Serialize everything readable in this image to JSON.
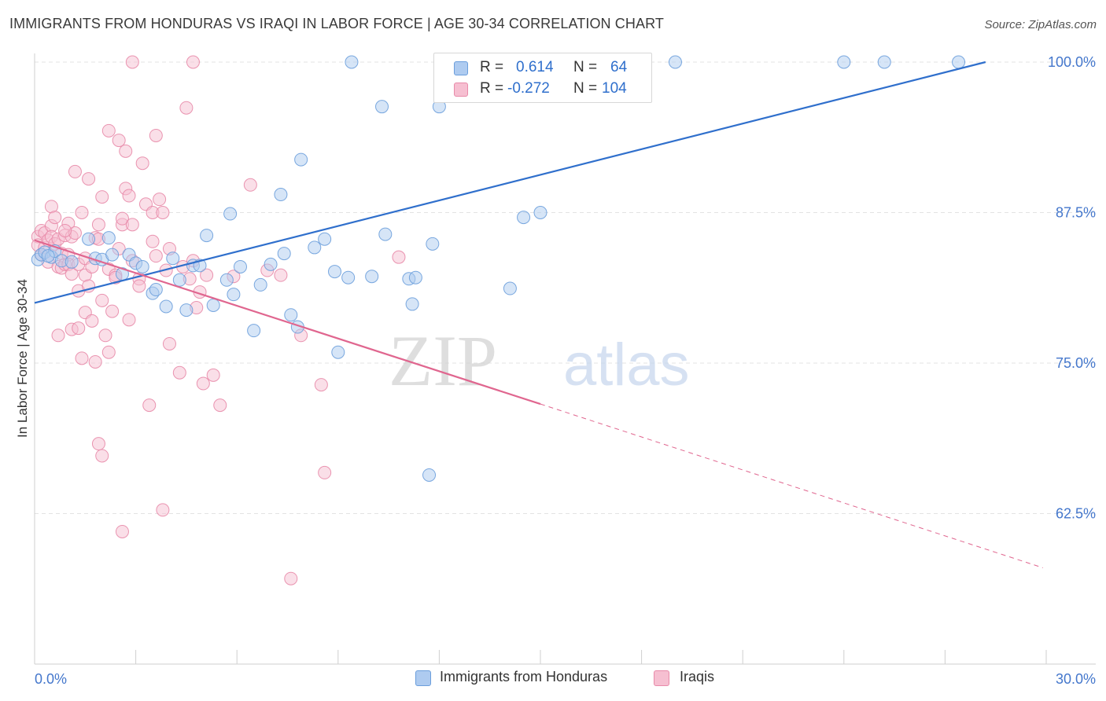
{
  "header": {
    "title": "IMMIGRANTS FROM HONDURAS VS IRAQI IN LABOR FORCE | AGE 30-34 CORRELATION CHART",
    "source": "Source: ZipAtlas.com"
  },
  "watermark": {
    "zip": "ZIP",
    "atlas": "atlas"
  },
  "legend": {
    "rows": [
      {
        "r_label": "R =",
        "r_value": "0.614",
        "n_label": "N =",
        "n_value": "64"
      },
      {
        "r_label": "R =",
        "r_value": "-0.272",
        "n_label": "N =",
        "n_value": "104"
      }
    ]
  },
  "colors": {
    "honduras_fill": "#aecbf0",
    "honduras_stroke": "#6b9edc",
    "honduras_line": "#2f6fcc",
    "iraqis_fill": "#f6bfd1",
    "iraqis_stroke": "#e88aa9",
    "iraqis_line": "#e0668f",
    "axis_label": "#4477cc",
    "grid": "#e3e3e3"
  },
  "chart_data": {
    "type": "scatter",
    "title": "IMMIGRANTS FROM HONDURAS VS IRAQI IN LABOR FORCE | AGE 30-34 CORRELATION CHART",
    "xlabel": "",
    "ylabel": "In Labor Force | Age 30-34",
    "xlim": [
      0,
      30
    ],
    "ylim": [
      50,
      100
    ],
    "x_tick_labels": [
      "0.0%",
      "30.0%"
    ],
    "y_ticks": [
      62.5,
      75.0,
      87.5,
      100.0
    ],
    "y_tick_labels": [
      "62.5%",
      "75.0%",
      "87.5%",
      "100.0%"
    ],
    "grid": true,
    "legend_position": "top-center",
    "series": [
      {
        "name": "Immigrants from Honduras",
        "r": 0.614,
        "n": 64,
        "trend": {
          "x0": 0,
          "y0": 80.0,
          "x1": 28.2,
          "y1": 100.0
        },
        "points": [
          [
            0.1,
            83.6
          ],
          [
            0.2,
            84.0
          ],
          [
            0.3,
            84.2
          ],
          [
            0.5,
            83.8
          ],
          [
            0.6,
            84.3
          ],
          [
            0.8,
            83.5
          ],
          [
            1.1,
            83.4
          ],
          [
            1.6,
            85.3
          ],
          [
            1.8,
            83.7
          ],
          [
            2.0,
            83.6
          ],
          [
            2.2,
            85.4
          ],
          [
            2.3,
            84.0
          ],
          [
            2.6,
            82.4
          ],
          [
            2.8,
            84.0
          ],
          [
            3.0,
            83.3
          ],
          [
            3.2,
            83.0
          ],
          [
            3.5,
            80.8
          ],
          [
            3.6,
            81.1
          ],
          [
            3.9,
            79.7
          ],
          [
            4.1,
            83.7
          ],
          [
            4.3,
            81.9
          ],
          [
            4.5,
            79.4
          ],
          [
            4.7,
            83.1
          ],
          [
            4.9,
            83.1
          ],
          [
            5.1,
            85.6
          ],
          [
            5.3,
            79.8
          ],
          [
            5.7,
            81.9
          ],
          [
            5.8,
            87.4
          ],
          [
            5.9,
            80.7
          ],
          [
            6.1,
            83.0
          ],
          [
            6.5,
            77.7
          ],
          [
            6.7,
            81.5
          ],
          [
            7.0,
            83.2
          ],
          [
            7.3,
            89.0
          ],
          [
            7.4,
            84.1
          ],
          [
            7.6,
            79.0
          ],
          [
            7.8,
            78.0
          ],
          [
            7.9,
            91.9
          ],
          [
            8.3,
            84.6
          ],
          [
            8.6,
            85.3
          ],
          [
            8.9,
            82.6
          ],
          [
            9.0,
            75.9
          ],
          [
            9.3,
            82.1
          ],
          [
            9.4,
            100.0
          ],
          [
            10.0,
            82.2
          ],
          [
            10.3,
            96.3
          ],
          [
            10.4,
            85.7
          ],
          [
            11.1,
            82.0
          ],
          [
            11.2,
            79.9
          ],
          [
            11.3,
            82.1
          ],
          [
            11.7,
            65.7
          ],
          [
            11.8,
            84.9
          ],
          [
            12.0,
            96.3
          ],
          [
            14.1,
            81.2
          ],
          [
            14.5,
            87.1
          ],
          [
            15.0,
            87.5
          ],
          [
            16.0,
            100.0
          ],
          [
            16.5,
            100.0
          ],
          [
            17.1,
            100.0
          ],
          [
            19.0,
            100.0
          ],
          [
            24.0,
            100.0
          ],
          [
            25.2,
            100.0
          ],
          [
            27.4,
            100.0
          ],
          [
            0.4,
            83.9
          ]
        ]
      },
      {
        "name": "Iraqis",
        "r": -0.272,
        "n": 104,
        "trend": {
          "x0": 0,
          "y0": 85.2,
          "x1": 15.0,
          "y1": 71.6
        },
        "trend_extension": {
          "x0": 15.0,
          "y0": 71.6,
          "x1": 29.9,
          "y1": 58.0
        },
        "points": [
          [
            0.1,
            85.5
          ],
          [
            0.1,
            84.8
          ],
          [
            0.2,
            86.0
          ],
          [
            0.2,
            84.0
          ],
          [
            0.3,
            85.8
          ],
          [
            0.3,
            84.6
          ],
          [
            0.4,
            85.2
          ],
          [
            0.4,
            83.4
          ],
          [
            0.5,
            86.4
          ],
          [
            0.5,
            85.5
          ],
          [
            0.5,
            88.0
          ],
          [
            0.6,
            84.9
          ],
          [
            0.6,
            87.1
          ],
          [
            0.7,
            85.3
          ],
          [
            0.7,
            77.3
          ],
          [
            0.7,
            83.0
          ],
          [
            0.8,
            84.1
          ],
          [
            0.8,
            82.9
          ],
          [
            0.9,
            85.6
          ],
          [
            0.9,
            83.2
          ],
          [
            1.0,
            86.6
          ],
          [
            1.0,
            84.0
          ],
          [
            1.0,
            83.2
          ],
          [
            1.1,
            85.5
          ],
          [
            1.1,
            77.8
          ],
          [
            1.1,
            82.4
          ],
          [
            1.2,
            90.9
          ],
          [
            1.2,
            85.8
          ],
          [
            1.3,
            83.2
          ],
          [
            1.3,
            77.9
          ],
          [
            1.3,
            81.0
          ],
          [
            1.4,
            87.5
          ],
          [
            1.4,
            75.4
          ],
          [
            1.5,
            83.7
          ],
          [
            1.5,
            82.3
          ],
          [
            1.5,
            79.2
          ],
          [
            1.6,
            90.3
          ],
          [
            1.6,
            81.4
          ],
          [
            1.7,
            78.5
          ],
          [
            1.7,
            83.0
          ],
          [
            1.8,
            75.1
          ],
          [
            1.8,
            85.4
          ],
          [
            1.9,
            86.5
          ],
          [
            1.9,
            68.3
          ],
          [
            2.0,
            67.3
          ],
          [
            2.0,
            88.8
          ],
          [
            2.0,
            80.2
          ],
          [
            2.1,
            77.3
          ],
          [
            2.2,
            75.9
          ],
          [
            2.2,
            82.8
          ],
          [
            2.2,
            94.3
          ],
          [
            2.3,
            79.3
          ],
          [
            2.4,
            82.3
          ],
          [
            2.4,
            82.1
          ],
          [
            2.5,
            84.5
          ],
          [
            2.5,
            93.5
          ],
          [
            2.6,
            86.5
          ],
          [
            2.6,
            87.0
          ],
          [
            2.6,
            61.0
          ],
          [
            2.7,
            92.6
          ],
          [
            2.7,
            89.5
          ],
          [
            2.8,
            88.9
          ],
          [
            2.8,
            78.6
          ],
          [
            2.9,
            86.5
          ],
          [
            2.9,
            83.5
          ],
          [
            3.1,
            82.0
          ],
          [
            3.1,
            81.4
          ],
          [
            3.2,
            91.6
          ],
          [
            3.3,
            88.2
          ],
          [
            3.4,
            71.5
          ],
          [
            3.5,
            85.1
          ],
          [
            3.5,
            87.5
          ],
          [
            3.6,
            93.9
          ],
          [
            3.6,
            83.9
          ],
          [
            3.7,
            88.6
          ],
          [
            3.8,
            62.8
          ],
          [
            3.8,
            87.5
          ],
          [
            3.9,
            82.7
          ],
          [
            4.0,
            84.5
          ],
          [
            4.0,
            76.6
          ],
          [
            4.3,
            74.2
          ],
          [
            4.4,
            83.0
          ],
          [
            4.5,
            96.2
          ],
          [
            4.6,
            82.0
          ],
          [
            4.7,
            83.5
          ],
          [
            4.8,
            79.6
          ],
          [
            4.9,
            80.9
          ],
          [
            5.0,
            73.3
          ],
          [
            5.1,
            82.3
          ],
          [
            5.3,
            74.0
          ],
          [
            5.5,
            71.5
          ],
          [
            5.9,
            82.2
          ],
          [
            6.4,
            89.8
          ],
          [
            6.9,
            82.7
          ],
          [
            7.3,
            82.3
          ],
          [
            7.6,
            57.1
          ],
          [
            7.9,
            77.3
          ],
          [
            8.5,
            73.2
          ],
          [
            8.6,
            65.9
          ],
          [
            10.8,
            83.8
          ],
          [
            2.9,
            100.0
          ],
          [
            4.7,
            100.0
          ],
          [
            0.9,
            86.0
          ],
          [
            1.9,
            85.3
          ]
        ]
      }
    ]
  }
}
